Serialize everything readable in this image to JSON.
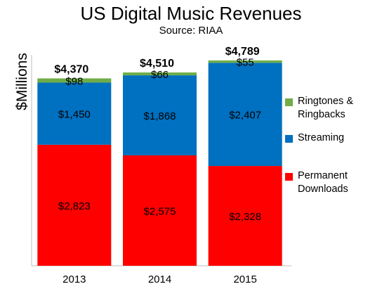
{
  "chart_data": {
    "type": "bar",
    "stacked": true,
    "title": "US Digital Music Revenues",
    "subtitle": "Source: RIAA",
    "ylabel": "$Millions",
    "xlabel": "",
    "categories": [
      "2013",
      "2014",
      "2015"
    ],
    "totals": [
      "$4,370",
      "$4,510",
      "$4,789"
    ],
    "series": [
      {
        "name": "Permanent Downloads",
        "values": [
          2823,
          2575,
          2328
        ],
        "labels": [
          "$2,823",
          "$2,575",
          "$2,328"
        ],
        "color": "#ff0000"
      },
      {
        "name": "Streaming",
        "values": [
          1450,
          1868,
          2407
        ],
        "labels": [
          "$1,450",
          "$1,868",
          "$2,407"
        ],
        "color": "#0070c0"
      },
      {
        "name": "Ringtones & Ringbacks",
        "values": [
          98,
          66,
          55
        ],
        "labels": [
          "$98",
          "$66",
          "$55"
        ],
        "color": "#70ad47"
      }
    ],
    "ylim": [
      0,
      5000
    ],
    "legend_position": "right",
    "grid": false
  },
  "legend": [
    {
      "line1": "Ringtones &",
      "line2": "Ringbacks"
    },
    {
      "line1": "Streaming",
      "line2": ""
    },
    {
      "line1": "Permanent",
      "line2": "Downloads"
    }
  ]
}
